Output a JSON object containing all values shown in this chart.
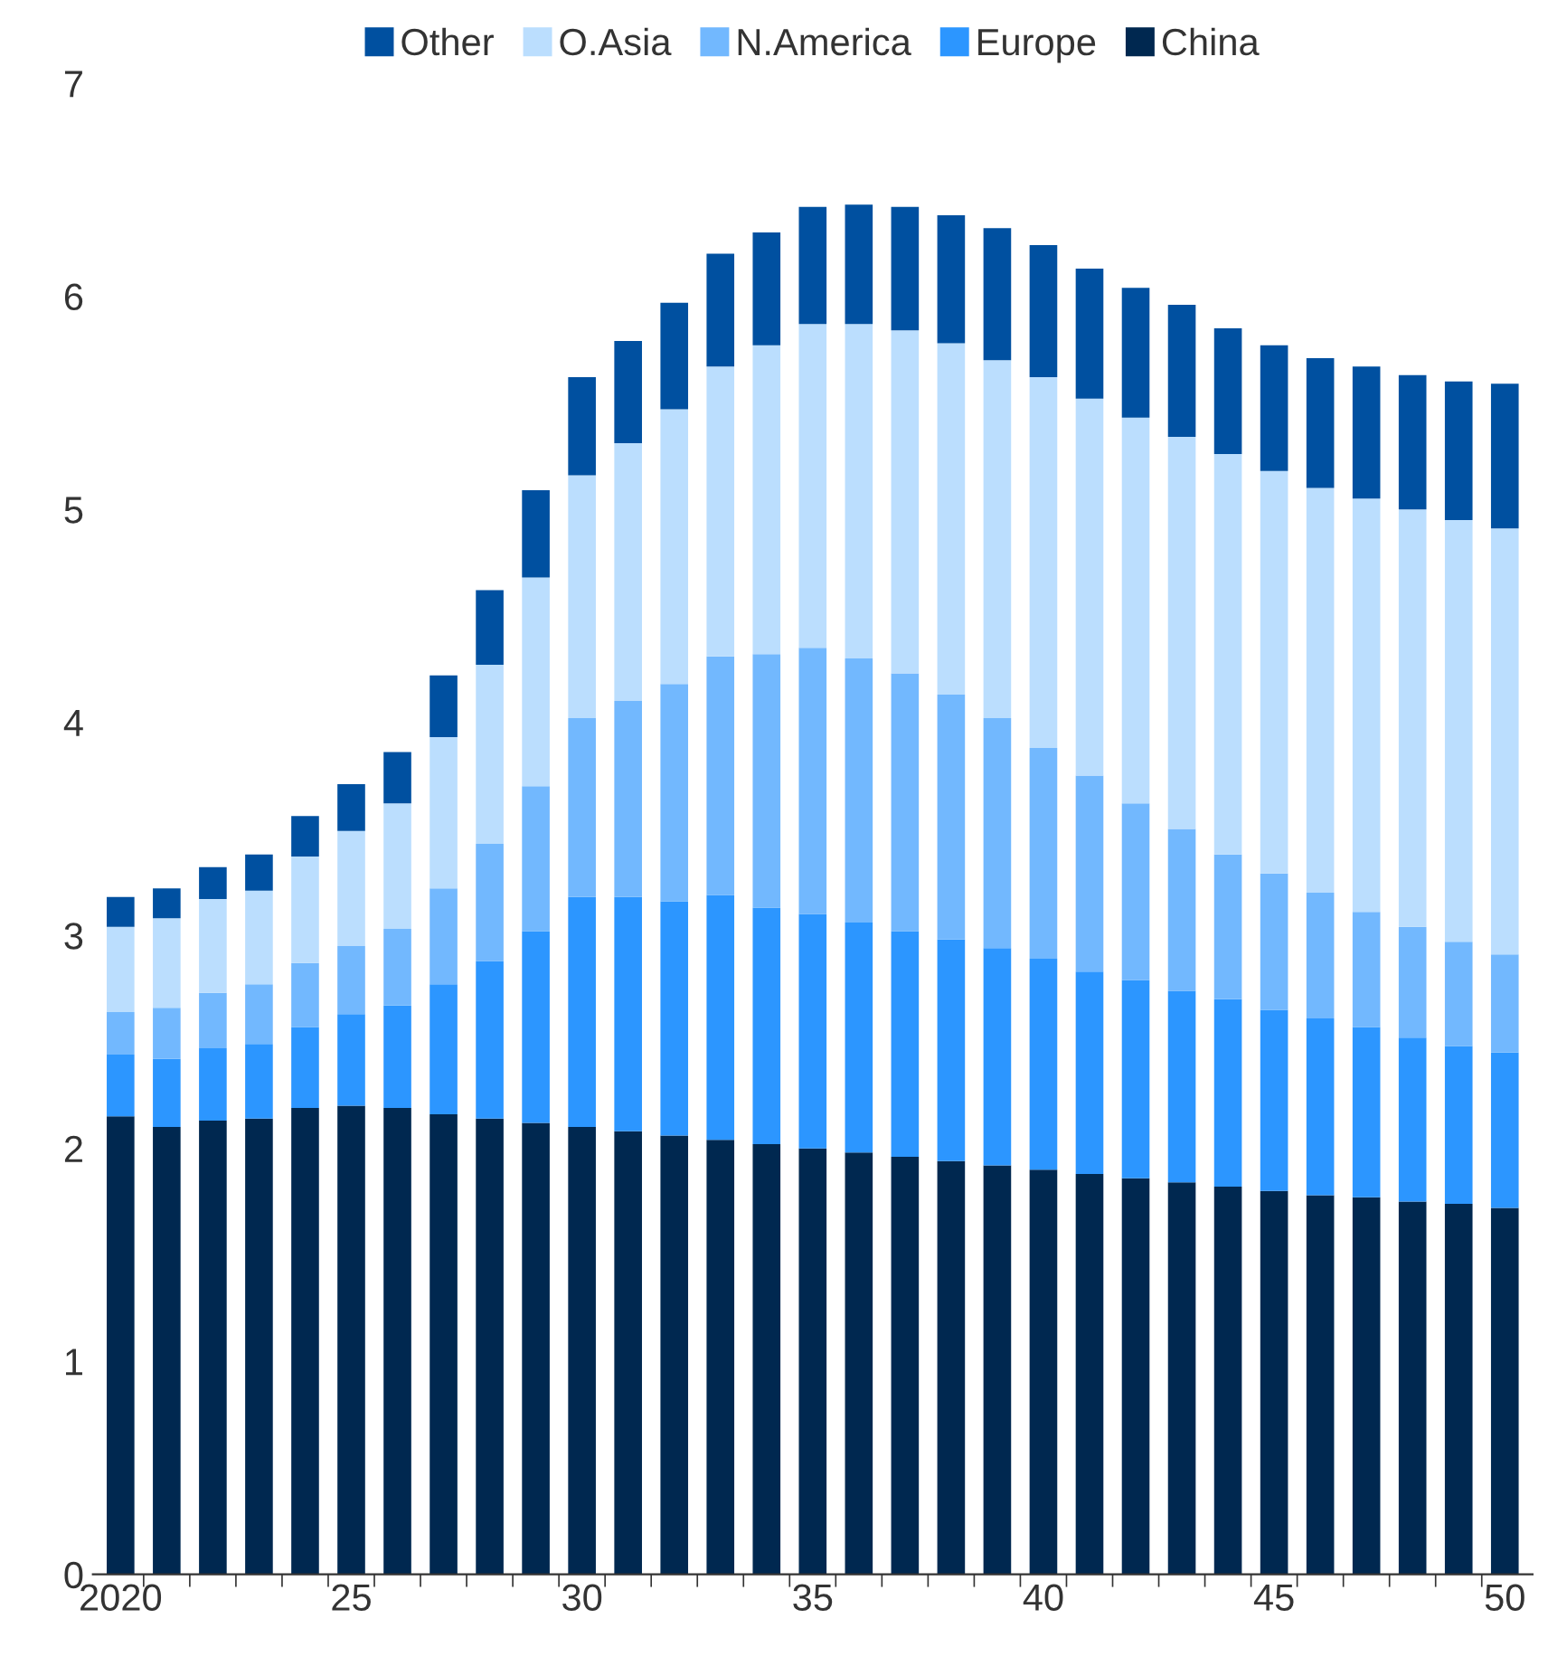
{
  "chart_data": {
    "type": "bar",
    "stacked": true,
    "categories": [
      "2020",
      null,
      null,
      null,
      null,
      "25",
      null,
      null,
      null,
      null,
      "30",
      null,
      null,
      null,
      null,
      "35",
      null,
      null,
      null,
      null,
      "40",
      null,
      null,
      null,
      null,
      "45",
      null,
      null,
      null,
      null,
      "50"
    ],
    "series": [
      {
        "name": "China",
        "color": "#002850",
        "values": [
          2.15,
          2.1,
          2.13,
          2.14,
          2.19,
          2.2,
          2.19,
          2.16,
          2.14,
          2.12,
          2.1,
          2.08,
          2.06,
          2.04,
          2.02,
          2.0,
          1.98,
          1.96,
          1.94,
          1.92,
          1.9,
          1.88,
          1.86,
          1.84,
          1.82,
          1.8,
          1.78,
          1.77,
          1.75,
          1.74,
          1.72
        ]
      },
      {
        "name": "Europe",
        "color": "#2c96ff",
        "values": [
          0.29,
          0.32,
          0.34,
          0.35,
          0.38,
          0.43,
          0.48,
          0.61,
          0.74,
          0.9,
          1.08,
          1.1,
          1.1,
          1.15,
          1.11,
          1.1,
          1.08,
          1.06,
          1.04,
          1.02,
          0.99,
          0.95,
          0.93,
          0.9,
          0.88,
          0.85,
          0.83,
          0.8,
          0.77,
          0.74,
          0.73
        ]
      },
      {
        "name": "N.America",
        "color": "#72b8fe",
        "values": [
          0.2,
          0.24,
          0.26,
          0.28,
          0.3,
          0.32,
          0.36,
          0.45,
          0.55,
          0.68,
          0.84,
          0.92,
          1.02,
          1.12,
          1.19,
          1.25,
          1.24,
          1.21,
          1.15,
          1.08,
          0.99,
          0.92,
          0.83,
          0.76,
          0.68,
          0.64,
          0.59,
          0.54,
          0.52,
          0.49,
          0.46
        ]
      },
      {
        "name": "O.Asia",
        "color": "#bbdefe",
        "values": [
          0.4,
          0.42,
          0.44,
          0.44,
          0.5,
          0.54,
          0.59,
          0.71,
          0.84,
          0.98,
          1.14,
          1.21,
          1.29,
          1.36,
          1.45,
          1.52,
          1.57,
          1.61,
          1.65,
          1.68,
          1.74,
          1.77,
          1.81,
          1.84,
          1.88,
          1.89,
          1.9,
          1.94,
          1.96,
          1.98,
          2.0
        ]
      },
      {
        "name": "Other",
        "color": "#0050a0",
        "values": [
          0.14,
          0.14,
          0.15,
          0.17,
          0.19,
          0.22,
          0.24,
          0.29,
          0.35,
          0.41,
          0.46,
          0.48,
          0.5,
          0.53,
          0.53,
          0.55,
          0.56,
          0.58,
          0.6,
          0.62,
          0.62,
          0.61,
          0.61,
          0.62,
          0.59,
          0.59,
          0.61,
          0.62,
          0.63,
          0.65,
          0.68
        ]
      }
    ],
    "ylim": [
      0,
      7
    ],
    "yticks": [
      0,
      1,
      2,
      3,
      4,
      5,
      6,
      7
    ],
    "grid": false,
    "legend": "top"
  }
}
